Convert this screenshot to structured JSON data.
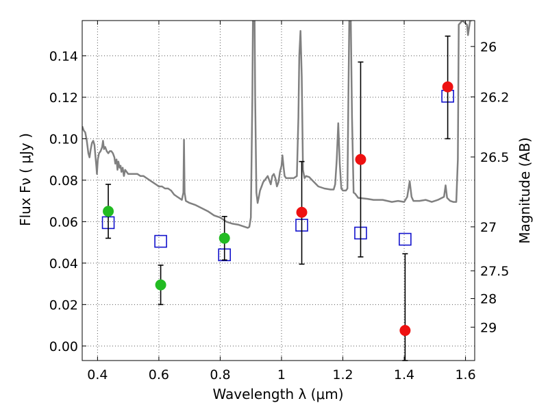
{
  "chart_data": {
    "type": "scatter",
    "xlabel": "Wavelength  λ (μm)",
    "ylabel": "Flux  Fν ( μJy )",
    "y2label": "Magnitude (AB)",
    "xlim": [
      0.35,
      1.63
    ],
    "ylim": [
      -0.007,
      0.157
    ],
    "grid": true,
    "x_ticks": [
      0.4,
      0.6,
      0.8,
      1.0,
      1.2,
      1.4,
      1.6
    ],
    "x_tick_labels": [
      "0.4",
      "0.6",
      "0.8",
      "1",
      "1.2",
      "1.4",
      "1.6"
    ],
    "y_ticks": [
      0.0,
      0.02,
      0.04,
      0.06,
      0.08,
      0.1,
      0.12,
      0.14
    ],
    "y_tick_labels": [
      "0.00",
      "0.02",
      "0.04",
      "0.06",
      "0.08",
      "0.10",
      "0.12",
      "0.14"
    ],
    "mag_ticks": [
      {
        "label": "26",
        "flux": 0.1445
      },
      {
        "label": "26.2",
        "flux": 0.1202
      },
      {
        "label": "26.5",
        "flux": 0.0912
      },
      {
        "label": "27",
        "flux": 0.0575
      },
      {
        "label": "27.5",
        "flux": 0.0363
      },
      {
        "label": "28",
        "flux": 0.0229
      },
      {
        "label": "29",
        "flux": 0.0091
      }
    ],
    "colors": {
      "template": "#808080",
      "green": "#22bb22",
      "red": "#ee1111",
      "model": "#1111cc",
      "errorbar": "#000000",
      "grid": "#555555"
    },
    "model_points": [
      {
        "x": 0.435,
        "y": 0.0595
      },
      {
        "x": 0.606,
        "y": 0.0505
      },
      {
        "x": 0.814,
        "y": 0.044
      },
      {
        "x": 1.066,
        "y": 0.0583
      },
      {
        "x": 1.258,
        "y": 0.0545
      },
      {
        "x": 1.403,
        "y": 0.0515
      },
      {
        "x": 1.542,
        "y": 0.1205
      }
    ],
    "observed_green": [
      {
        "x": 0.435,
        "y": 0.065,
        "lo": 0.052,
        "hi": 0.078
      },
      {
        "x": 0.606,
        "y": 0.0295,
        "lo": 0.02,
        "hi": 0.039
      },
      {
        "x": 0.814,
        "y": 0.052,
        "lo": 0.0415,
        "hi": 0.0625
      }
    ],
    "observed_red": [
      {
        "x": 1.066,
        "y": 0.0645,
        "lo": 0.0395,
        "hi": 0.089
      },
      {
        "x": 1.258,
        "y": 0.09,
        "lo": 0.043,
        "hi": 0.137
      },
      {
        "x": 1.403,
        "y": 0.0075,
        "lo": -0.007,
        "hi": 0.0445
      },
      {
        "x": 1.542,
        "y": 0.125,
        "lo": 0.1,
        "hi": 0.1495
      }
    ],
    "template_sed": [
      [
        0.35,
        0.106
      ],
      [
        0.355,
        0.104
      ],
      [
        0.36,
        0.103
      ],
      [
        0.365,
        0.099
      ],
      [
        0.37,
        0.093
      ],
      [
        0.374,
        0.091
      ],
      [
        0.378,
        0.095
      ],
      [
        0.382,
        0.098
      ],
      [
        0.386,
        0.099
      ],
      [
        0.39,
        0.097
      ],
      [
        0.393,
        0.092
      ],
      [
        0.396,
        0.087
      ],
      [
        0.398,
        0.083
      ],
      [
        0.401,
        0.09
      ],
      [
        0.405,
        0.093
      ],
      [
        0.41,
        0.094
      ],
      [
        0.415,
        0.096
      ],
      [
        0.418,
        0.099
      ],
      [
        0.421,
        0.095
      ],
      [
        0.425,
        0.096
      ],
      [
        0.43,
        0.094
      ],
      [
        0.435,
        0.093
      ],
      [
        0.44,
        0.094
      ],
      [
        0.445,
        0.094
      ],
      [
        0.45,
        0.093
      ],
      [
        0.455,
        0.091
      ],
      [
        0.458,
        0.088
      ],
      [
        0.462,
        0.09
      ],
      [
        0.465,
        0.085
      ],
      [
        0.468,
        0.089
      ],
      [
        0.472,
        0.086
      ],
      [
        0.475,
        0.087
      ],
      [
        0.478,
        0.084
      ],
      [
        0.482,
        0.086
      ],
      [
        0.486,
        0.082
      ],
      [
        0.49,
        0.085
      ],
      [
        0.495,
        0.084
      ],
      [
        0.5,
        0.083
      ],
      [
        0.51,
        0.083
      ],
      [
        0.52,
        0.083
      ],
      [
        0.53,
        0.083
      ],
      [
        0.54,
        0.082
      ],
      [
        0.55,
        0.082
      ],
      [
        0.56,
        0.081
      ],
      [
        0.57,
        0.08
      ],
      [
        0.58,
        0.079
      ],
      [
        0.59,
        0.078
      ],
      [
        0.6,
        0.077
      ],
      [
        0.61,
        0.077
      ],
      [
        0.62,
        0.076
      ],
      [
        0.63,
        0.076
      ],
      [
        0.64,
        0.075
      ],
      [
        0.65,
        0.073
      ],
      [
        0.66,
        0.072
      ],
      [
        0.67,
        0.071
      ],
      [
        0.675,
        0.0705
      ],
      [
        0.68,
        0.074
      ],
      [
        0.682,
        0.0995
      ],
      [
        0.684,
        0.074
      ],
      [
        0.688,
        0.07
      ],
      [
        0.7,
        0.069
      ],
      [
        0.72,
        0.068
      ],
      [
        0.74,
        0.0665
      ],
      [
        0.76,
        0.065
      ],
      [
        0.78,
        0.063
      ],
      [
        0.8,
        0.062
      ],
      [
        0.82,
        0.06
      ],
      [
        0.84,
        0.059
      ],
      [
        0.86,
        0.0585
      ],
      [
        0.88,
        0.0575
      ],
      [
        0.89,
        0.057
      ],
      [
        0.895,
        0.0575
      ],
      [
        0.9,
        0.062
      ],
      [
        0.905,
        0.12
      ],
      [
        0.907,
        0.16
      ],
      [
        0.912,
        0.16
      ],
      [
        0.914,
        0.12
      ],
      [
        0.918,
        0.074
      ],
      [
        0.922,
        0.069
      ],
      [
        0.926,
        0.072
      ],
      [
        0.93,
        0.075
      ],
      [
        0.935,
        0.077
      ],
      [
        0.94,
        0.079
      ],
      [
        0.945,
        0.08
      ],
      [
        0.95,
        0.081
      ],
      [
        0.955,
        0.082
      ],
      [
        0.96,
        0.08
      ],
      [
        0.965,
        0.078
      ],
      [
        0.97,
        0.082
      ],
      [
        0.975,
        0.083
      ],
      [
        0.98,
        0.081
      ],
      [
        0.985,
        0.077
      ],
      [
        0.99,
        0.079
      ],
      [
        0.995,
        0.084
      ],
      [
        1.0,
        0.087
      ],
      [
        1.003,
        0.092
      ],
      [
        1.007,
        0.086
      ],
      [
        1.01,
        0.082
      ],
      [
        1.015,
        0.081
      ],
      [
        1.02,
        0.081
      ],
      [
        1.03,
        0.081
      ],
      [
        1.04,
        0.081
      ],
      [
        1.05,
        0.082
      ],
      [
        1.055,
        0.11
      ],
      [
        1.058,
        0.14
      ],
      [
        1.062,
        0.152
      ],
      [
        1.066,
        0.13
      ],
      [
        1.07,
        0.085
      ],
      [
        1.075,
        0.081
      ],
      [
        1.08,
        0.082
      ],
      [
        1.09,
        0.0815
      ],
      [
        1.1,
        0.08
      ],
      [
        1.12,
        0.077
      ],
      [
        1.14,
        0.076
      ],
      [
        1.16,
        0.0755
      ],
      [
        1.17,
        0.0755
      ],
      [
        1.175,
        0.078
      ],
      [
        1.18,
        0.09
      ],
      [
        1.185,
        0.1075
      ],
      [
        1.19,
        0.088
      ],
      [
        1.195,
        0.076
      ],
      [
        1.2,
        0.075
      ],
      [
        1.21,
        0.075
      ],
      [
        1.215,
        0.076
      ],
      [
        1.218,
        0.12
      ],
      [
        1.221,
        0.157
      ],
      [
        1.226,
        0.157
      ],
      [
        1.23,
        0.11
      ],
      [
        1.235,
        0.074
      ],
      [
        1.24,
        0.0735
      ],
      [
        1.25,
        0.0715
      ],
      [
        1.28,
        0.071
      ],
      [
        1.3,
        0.0705
      ],
      [
        1.33,
        0.0705
      ],
      [
        1.36,
        0.0695
      ],
      [
        1.38,
        0.07
      ],
      [
        1.4,
        0.0695
      ],
      [
        1.41,
        0.072
      ],
      [
        1.418,
        0.0795
      ],
      [
        1.424,
        0.072
      ],
      [
        1.43,
        0.07
      ],
      [
        1.45,
        0.07
      ],
      [
        1.47,
        0.0705
      ],
      [
        1.49,
        0.0695
      ],
      [
        1.51,
        0.0705
      ],
      [
        1.53,
        0.072
      ],
      [
        1.535,
        0.0775
      ],
      [
        1.54,
        0.0715
      ],
      [
        1.55,
        0.07
      ],
      [
        1.56,
        0.0695
      ],
      [
        1.57,
        0.0695
      ],
      [
        1.575,
        0.09
      ],
      [
        1.578,
        0.155
      ],
      [
        1.59,
        0.157
      ],
      [
        1.605,
        0.155
      ],
      [
        1.608,
        0.15
      ],
      [
        1.615,
        0.157
      ],
      [
        1.62,
        0.157
      ]
    ]
  }
}
